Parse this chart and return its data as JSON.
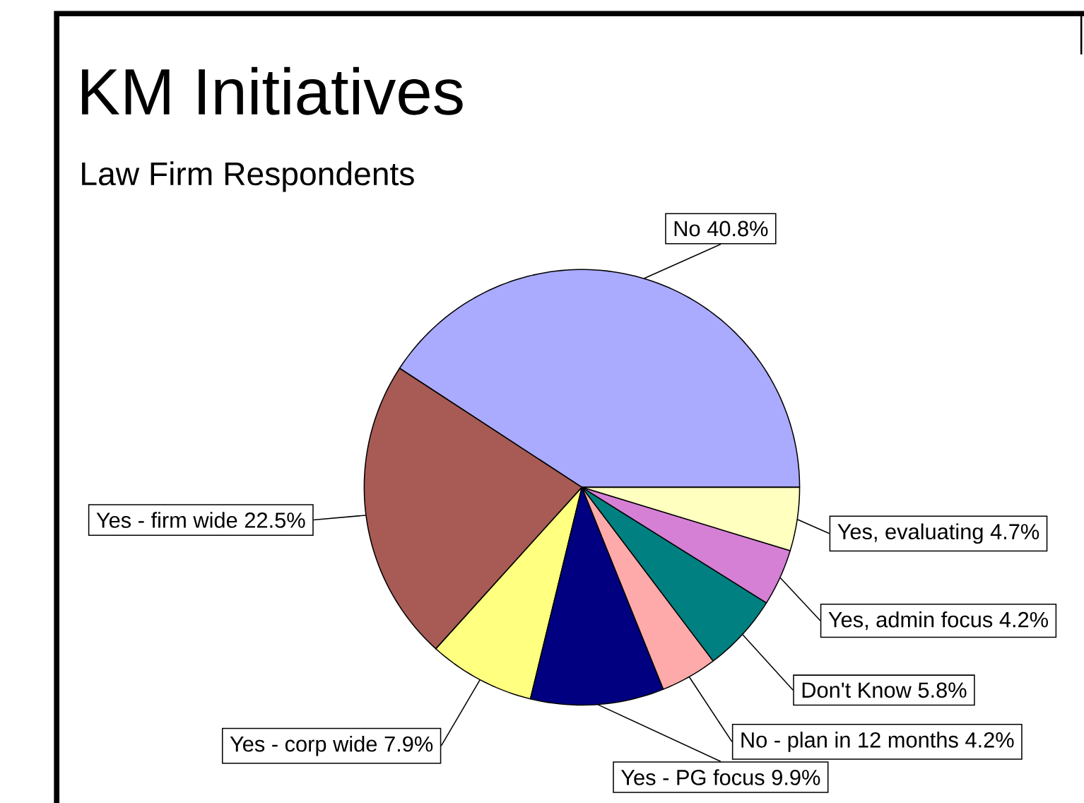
{
  "chart_data": {
    "type": "pie",
    "title": "KM Initiatives",
    "subtitle": "Law Firm Respondents",
    "categories": [
      "No",
      "Yes - firm wide",
      "Yes - corp wide",
      "Yes - PG focus",
      "No - plan in 12 months",
      "Don't Know",
      "Yes, admin focus",
      "Yes, evaluating"
    ],
    "values": [
      40.8,
      22.5,
      7.9,
      9.9,
      4.2,
      5.8,
      4.2,
      4.7
    ],
    "value_labels": [
      "40.8%",
      "22.5%",
      "7.9%",
      "9.9%",
      "4.2%",
      "5.8%",
      "4.2%",
      "4.7%"
    ],
    "colors": [
      "#aaaaff",
      "#a85a55",
      "#ffff80",
      "#000080",
      "#ffaaaa",
      "#008080",
      "#d580d5",
      "#ffffc0"
    ]
  }
}
